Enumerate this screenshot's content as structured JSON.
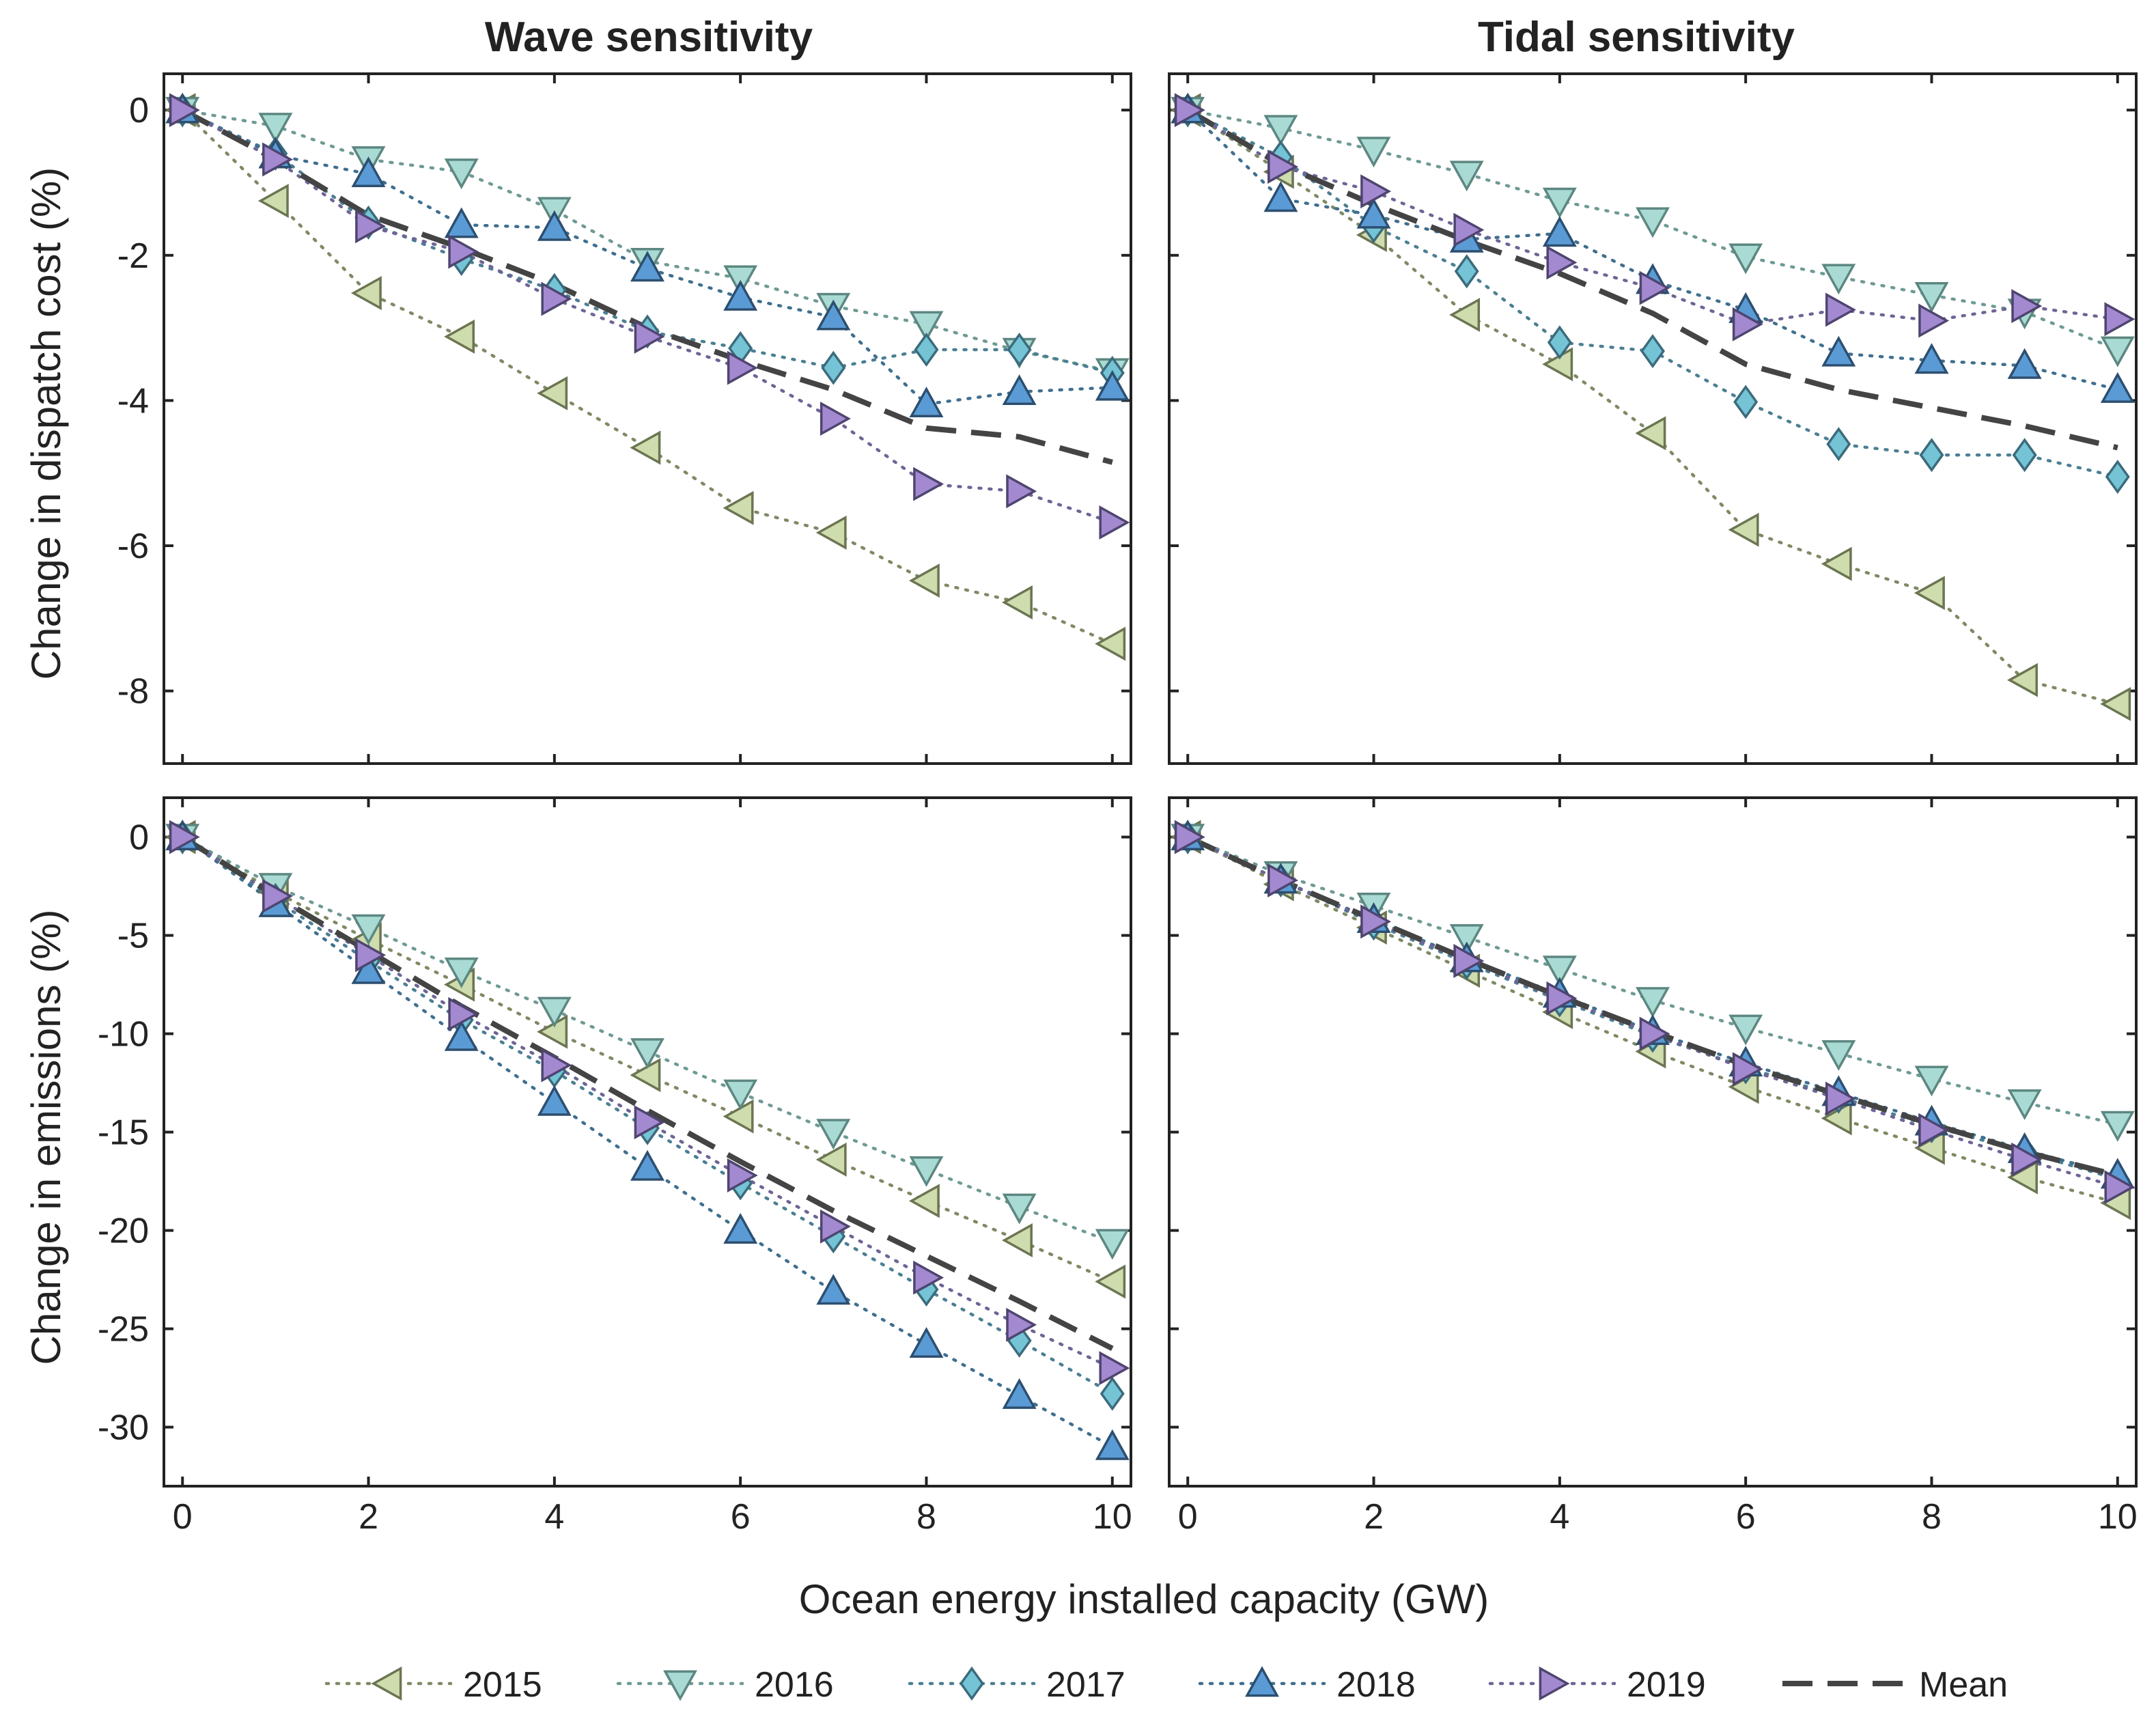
{
  "colors": {
    "2015": {
      "line": "#7f8a64",
      "fill": "#cfdcae",
      "stroke": "#6b7552"
    },
    "2016": {
      "line": "#6e9a94",
      "fill": "#a9dbd4",
      "stroke": "#5d8781"
    },
    "2017": {
      "line": "#4b7f93",
      "fill": "#74c4d6",
      "stroke": "#3c6b7c"
    },
    "2018": {
      "line": "#3f6f8f",
      "fill": "#5b9bd5",
      "stroke": "#2c4f70"
    },
    "2019": {
      "line": "#6e6496",
      "fill": "#a38ad0",
      "stroke": "#4f4570"
    },
    "mean": "#444444"
  },
  "axes_labels": {
    "ylabel_top": "Change in dispatch cost (%)",
    "ylabel_bottom": "Change in emissions (%)",
    "xlabel": "Ocean energy installed capacity (GW)"
  },
  "legend": [
    {
      "key": "2015",
      "label": "2015",
      "marker": "tri-left"
    },
    {
      "key": "2016",
      "label": "2016",
      "marker": "tri-down"
    },
    {
      "key": "2017",
      "label": "2017",
      "marker": "diamond"
    },
    {
      "key": "2018",
      "label": "2018",
      "marker": "tri-up"
    },
    {
      "key": "2019",
      "label": "2019",
      "marker": "tri-right"
    },
    {
      "key": "mean",
      "label": "Mean",
      "marker": "dash"
    }
  ],
  "chart_data": [
    {
      "id": "wave-cost",
      "type": "line",
      "title": "Wave sensitivity",
      "xlabel": "Ocean energy installed capacity (GW)",
      "ylabel": "Change in dispatch cost (%)",
      "xlim": [
        -0.2,
        10.2
      ],
      "ylim": [
        -9,
        0.5
      ],
      "xticks": [
        0,
        2,
        4,
        6,
        8,
        10
      ],
      "yticks": [
        0,
        -2,
        -4,
        -6,
        -8
      ],
      "x": [
        0,
        1,
        2,
        3,
        4,
        5,
        6,
        7,
        8,
        9,
        10
      ],
      "series": [
        {
          "name": "2015",
          "marker": "tri-left",
          "values": [
            0,
            -1.25,
            -2.52,
            -3.12,
            -3.9,
            -4.65,
            -5.48,
            -5.82,
            -6.48,
            -6.78,
            -7.35
          ]
        },
        {
          "name": "2016",
          "marker": "tri-down",
          "values": [
            0,
            -0.22,
            -0.68,
            -0.85,
            -1.38,
            -2.08,
            -2.32,
            -2.7,
            -2.95,
            -3.32,
            -3.6
          ]
        },
        {
          "name": "2017",
          "marker": "diamond",
          "values": [
            0,
            -0.6,
            -1.55,
            -2.05,
            -2.48,
            -3.05,
            -3.28,
            -3.55,
            -3.3,
            -3.3,
            -3.62
          ]
        },
        {
          "name": "2018",
          "marker": "tri-up",
          "values": [
            0,
            -0.62,
            -0.88,
            -1.58,
            -1.62,
            -2.18,
            -2.58,
            -2.85,
            -4.05,
            -3.88,
            -3.82
          ]
        },
        {
          "name": "2019",
          "marker": "tri-right",
          "values": [
            0,
            -0.68,
            -1.6,
            -1.95,
            -2.6,
            -3.12,
            -3.55,
            -4.25,
            -5.15,
            -5.25,
            -5.68
          ]
        },
        {
          "name": "Mean",
          "marker": "dash",
          "values": [
            0,
            -0.68,
            -1.45,
            -1.9,
            -2.4,
            -3.0,
            -3.45,
            -3.85,
            -4.38,
            -4.5,
            -4.85
          ]
        }
      ]
    },
    {
      "id": "tidal-cost",
      "type": "line",
      "title": "Tidal sensitivity",
      "xlabel": "Ocean energy installed capacity (GW)",
      "ylabel": "Change in dispatch cost (%)",
      "xlim": [
        -0.2,
        10.2
      ],
      "ylim": [
        -9,
        0.5
      ],
      "xticks": [
        0,
        2,
        4,
        6,
        8,
        10
      ],
      "yticks": [
        0,
        -2,
        -4,
        -6,
        -8
      ],
      "x": [
        0,
        1,
        2,
        3,
        4,
        5,
        6,
        7,
        8,
        9,
        10
      ],
      "series": [
        {
          "name": "2015",
          "marker": "tri-left",
          "values": [
            0,
            -0.85,
            -1.72,
            -2.82,
            -3.5,
            -4.45,
            -5.78,
            -6.25,
            -6.65,
            -7.85,
            -8.18
          ]
        },
        {
          "name": "2016",
          "marker": "tri-down",
          "values": [
            0,
            -0.25,
            -0.55,
            -0.88,
            -1.25,
            -1.52,
            -2.02,
            -2.3,
            -2.55,
            -2.78,
            -3.3
          ]
        },
        {
          "name": "2017",
          "marker": "diamond",
          "values": [
            0,
            -0.65,
            -1.6,
            -2.22,
            -3.2,
            -3.32,
            -4.02,
            -4.6,
            -4.75,
            -4.75,
            -5.05
          ]
        },
        {
          "name": "2018",
          "marker": "tri-up",
          "values": [
            0,
            -1.22,
            -1.45,
            -1.78,
            -1.7,
            -2.35,
            -2.75,
            -3.35,
            -3.45,
            -3.52,
            -3.85
          ]
        },
        {
          "name": "2019",
          "marker": "tri-right",
          "values": [
            0,
            -0.78,
            -1.12,
            -1.65,
            -2.1,
            -2.45,
            -2.95,
            -2.75,
            -2.9,
            -2.7,
            -2.88
          ]
        },
        {
          "name": "Mean",
          "marker": "dash",
          "values": [
            0,
            -0.75,
            -1.3,
            -1.8,
            -2.25,
            -2.8,
            -3.5,
            -3.85,
            -4.1,
            -4.35,
            -4.65
          ]
        }
      ]
    },
    {
      "id": "wave-emissions",
      "type": "line",
      "title": "",
      "xlabel": "Ocean energy installed capacity (GW)",
      "ylabel": "Change in emissions (%)",
      "xlim": [
        -0.2,
        10.2
      ],
      "ylim": [
        -33,
        2
      ],
      "xticks": [
        0,
        2,
        4,
        6,
        8,
        10
      ],
      "yticks": [
        0,
        -5,
        -10,
        -15,
        -20,
        -25,
        -30
      ],
      "x": [
        0,
        1,
        2,
        3,
        4,
        5,
        6,
        7,
        8,
        9,
        10
      ],
      "series": [
        {
          "name": "2015",
          "marker": "tri-left",
          "values": [
            0,
            -2.8,
            -5.2,
            -7.5,
            -9.9,
            -12.1,
            -14.2,
            -16.4,
            -18.5,
            -20.5,
            -22.6
          ]
        },
        {
          "name": "2016",
          "marker": "tri-down",
          "values": [
            0,
            -2.5,
            -4.6,
            -6.8,
            -8.8,
            -10.9,
            -13.0,
            -15.0,
            -16.9,
            -18.8,
            -20.6
          ]
        },
        {
          "name": "2017",
          "marker": "diamond",
          "values": [
            0,
            -3.2,
            -6.3,
            -9.3,
            -11.9,
            -14.8,
            -17.6,
            -20.3,
            -23.0,
            -25.6,
            -28.3
          ]
        },
        {
          "name": "2018",
          "marker": "tri-up",
          "values": [
            0,
            -3.4,
            -6.8,
            -10.2,
            -13.5,
            -16.8,
            -20.0,
            -23.1,
            -25.8,
            -28.4,
            -31.0
          ]
        },
        {
          "name": "2019",
          "marker": "tri-right",
          "values": [
            0,
            -3.0,
            -6.0,
            -9.0,
            -11.6,
            -14.5,
            -17.2,
            -19.8,
            -22.4,
            -24.8,
            -27.0
          ]
        },
        {
          "name": "Mean",
          "marker": "dash",
          "values": [
            0,
            -3.0,
            -5.8,
            -8.6,
            -11.2,
            -13.9,
            -16.5,
            -19.0,
            -21.3,
            -23.6,
            -26.0
          ]
        }
      ]
    },
    {
      "id": "tidal-emissions",
      "type": "line",
      "title": "",
      "xlabel": "Ocean energy installed capacity (GW)",
      "ylabel": "Change in emissions (%)",
      "xlim": [
        -0.2,
        10.2
      ],
      "ylim": [
        -33,
        2
      ],
      "xticks": [
        0,
        2,
        4,
        6,
        8,
        10
      ],
      "yticks": [
        0,
        -5,
        -10,
        -15,
        -20,
        -25,
        -30
      ],
      "x": [
        0,
        1,
        2,
        3,
        4,
        5,
        6,
        7,
        8,
        9,
        10
      ],
      "series": [
        {
          "name": "2015",
          "marker": "tri-left",
          "values": [
            0,
            -2.4,
            -4.6,
            -6.8,
            -8.9,
            -10.9,
            -12.7,
            -14.3,
            -15.8,
            -17.3,
            -18.6
          ]
        },
        {
          "name": "2016",
          "marker": "tri-down",
          "values": [
            0,
            -1.9,
            -3.5,
            -5.1,
            -6.7,
            -8.3,
            -9.7,
            -11.0,
            -12.3,
            -13.5,
            -14.6
          ]
        },
        {
          "name": "2017",
          "marker": "diamond",
          "values": [
            0,
            -2.2,
            -4.4,
            -6.4,
            -8.3,
            -10.1,
            -11.7,
            -13.2,
            -14.7,
            -16.0,
            -17.4
          ]
        },
        {
          "name": "2018",
          "marker": "tri-up",
          "values": [
            0,
            -2.2,
            -4.2,
            -6.2,
            -8.0,
            -9.9,
            -11.5,
            -13.0,
            -14.5,
            -15.9,
            -17.2
          ]
        },
        {
          "name": "2019",
          "marker": "tri-right",
          "values": [
            0,
            -2.2,
            -4.3,
            -6.3,
            -8.2,
            -10.0,
            -11.8,
            -13.3,
            -14.9,
            -16.4,
            -17.8
          ]
        },
        {
          "name": "Mean",
          "marker": "dash",
          "values": [
            0,
            -2.2,
            -4.2,
            -6.2,
            -8.1,
            -9.9,
            -11.6,
            -13.1,
            -14.6,
            -16.0,
            -17.2
          ]
        }
      ]
    }
  ]
}
